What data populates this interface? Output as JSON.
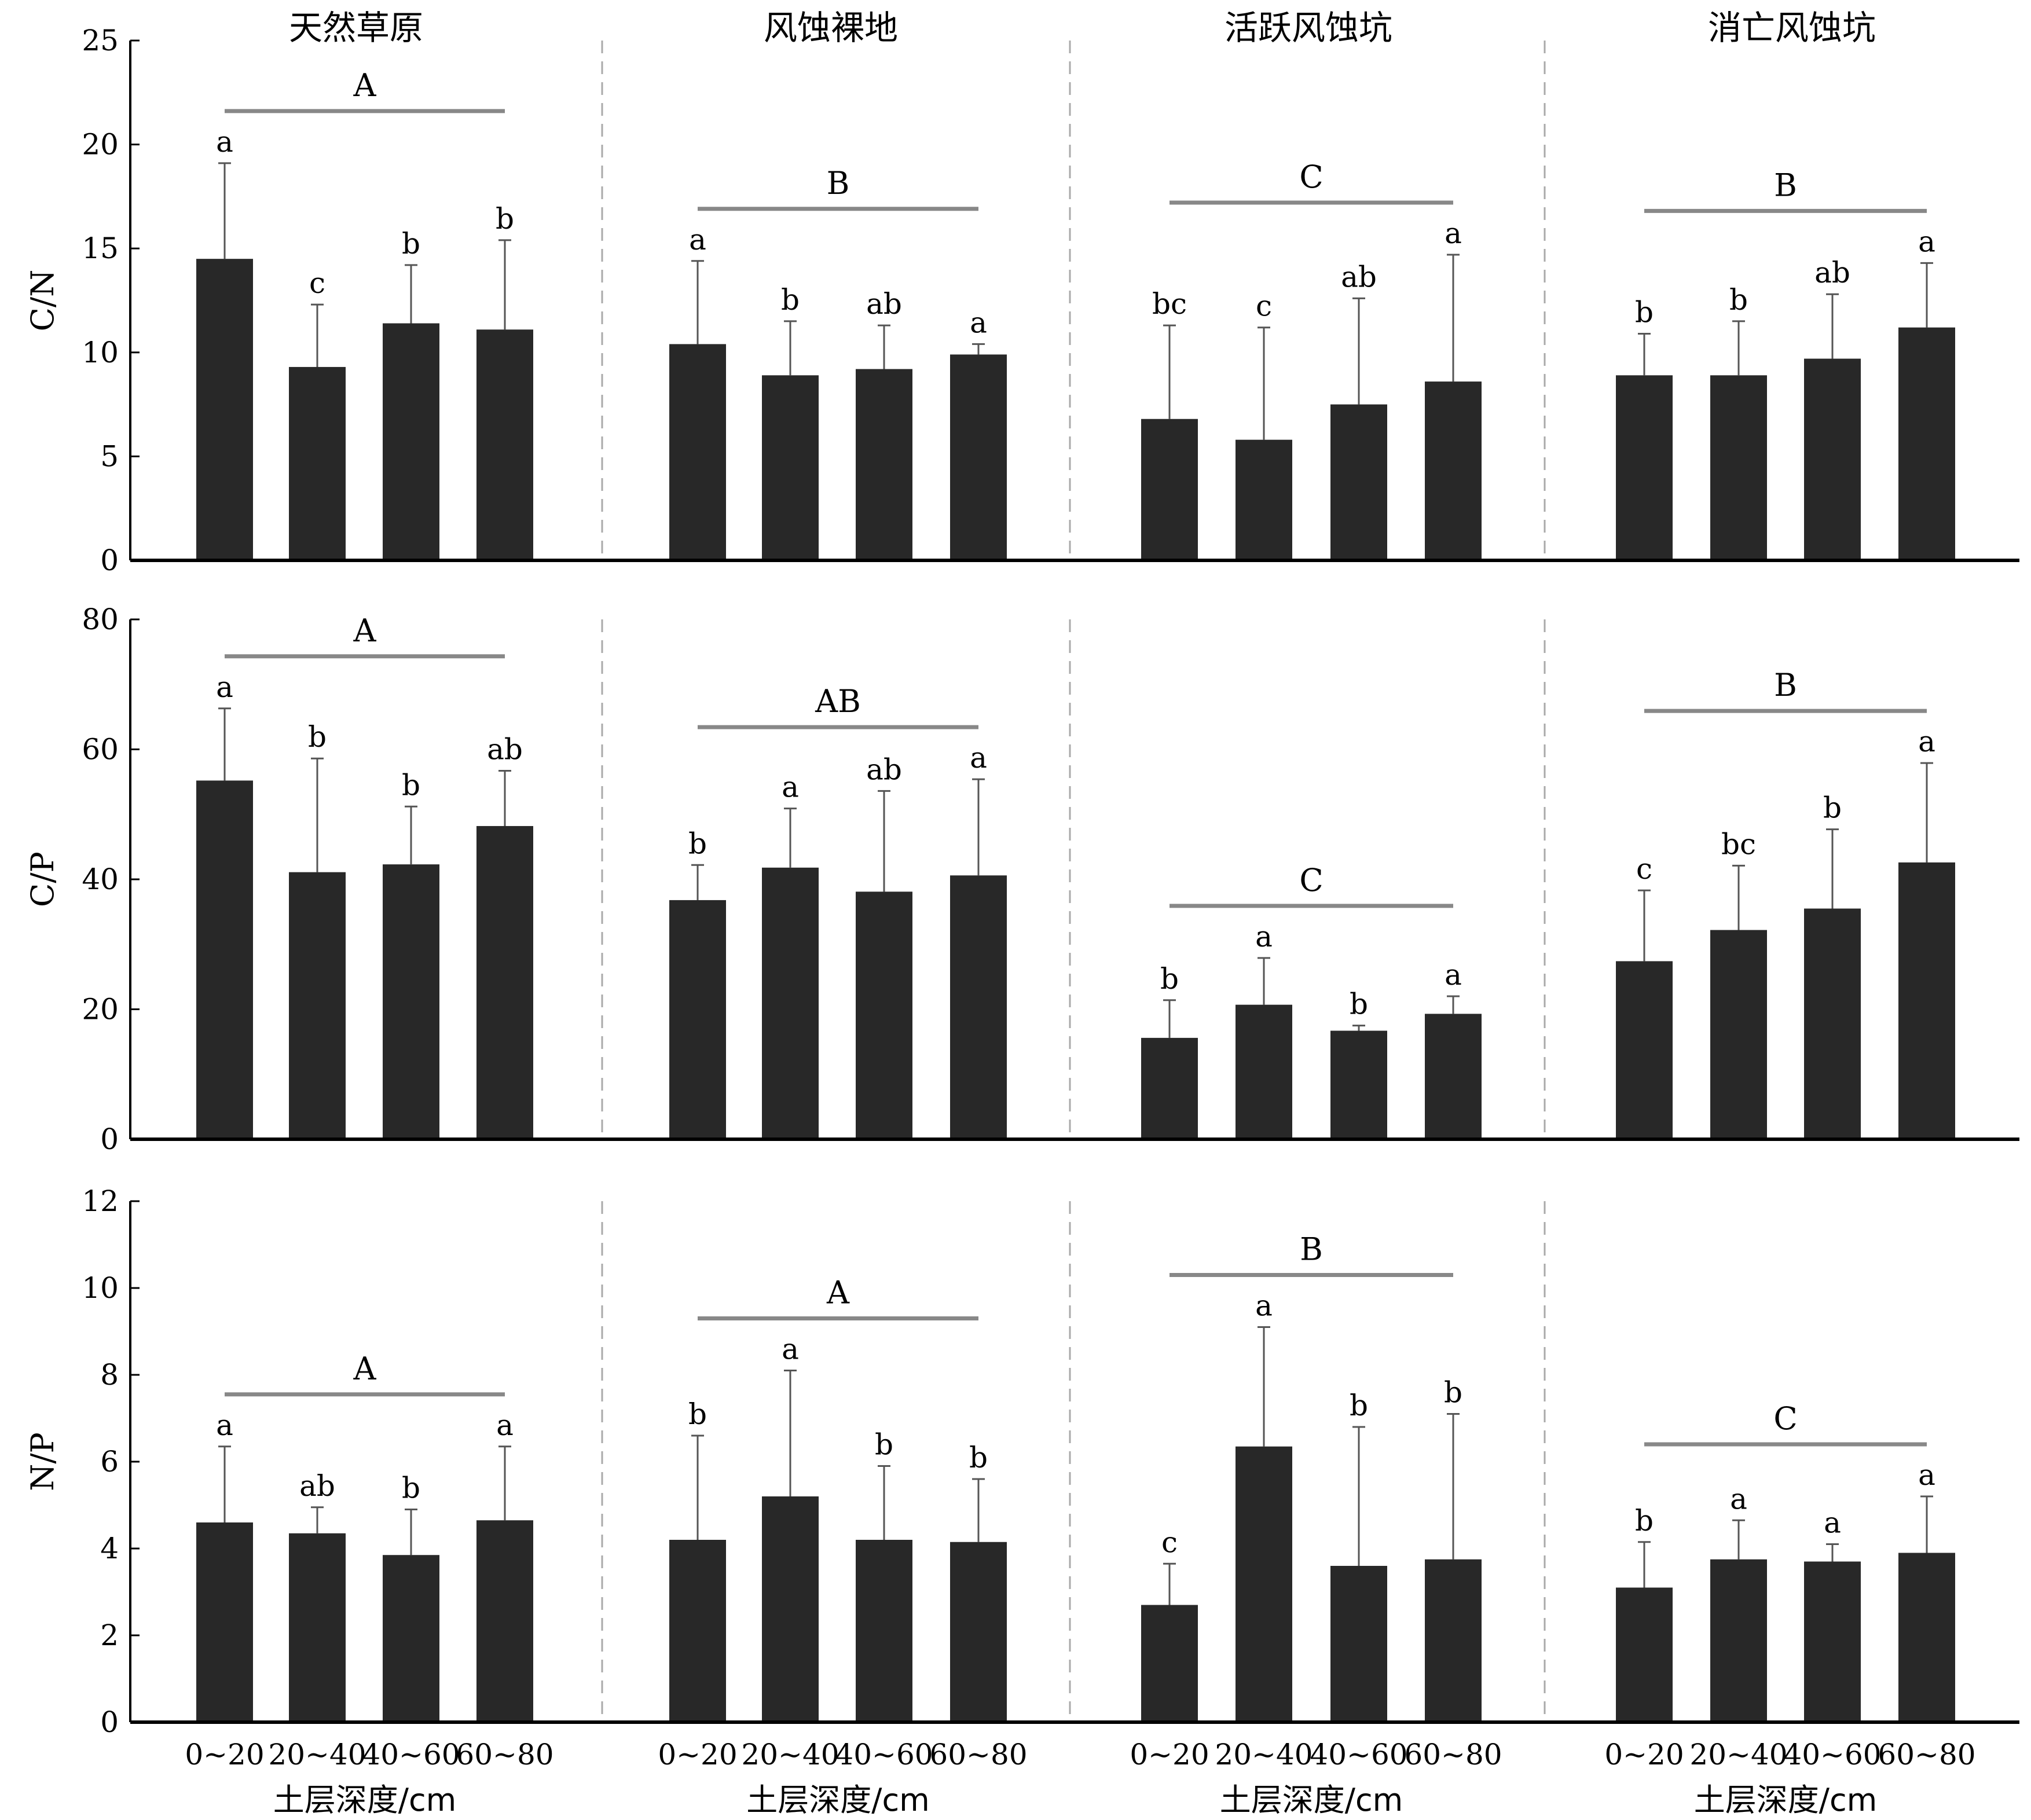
{
  "figure": {
    "site_labels": [
      "天然草原",
      "风蚀裸地",
      "活跃风蚀坑",
      "消亡风蚀坑"
    ],
    "x_tick_labels": [
      "0~20",
      "20~40",
      "40~60",
      "60~80"
    ],
    "x_axis_label": "土层深度/cm"
  },
  "colors": {
    "bar": "#282828",
    "error": "#555555",
    "group_line": "#888888",
    "divider": "#aaaaaa",
    "axis": "#000000"
  },
  "chart_data": [
    {
      "type": "bar",
      "ylabel": "C/N",
      "ylim": [
        0,
        25
      ],
      "yticks": [
        0,
        5,
        10,
        15,
        20,
        25
      ],
      "categories": [
        "0~20",
        "20~40",
        "40~60",
        "60~80"
      ],
      "groups": [
        {
          "site": "天然草原",
          "values": [
            14.5,
            9.3,
            11.4,
            11.1
          ],
          "error_top": [
            19.1,
            12.3,
            14.2,
            15.4
          ],
          "letters": [
            "a",
            "c",
            "b",
            "b"
          ],
          "group_letter": "A"
        },
        {
          "site": "风蚀裸地",
          "values": [
            10.4,
            8.9,
            9.2,
            9.9
          ],
          "error_top": [
            14.4,
            11.5,
            11.3,
            10.4
          ],
          "letters": [
            "a",
            "b",
            "ab",
            "a"
          ],
          "group_letter": "B"
        },
        {
          "site": "活跃风蚀坑",
          "values": [
            6.8,
            5.8,
            7.5,
            8.6
          ],
          "error_top": [
            11.3,
            11.2,
            12.6,
            14.7
          ],
          "letters": [
            "bc",
            "c",
            "ab",
            "a"
          ],
          "group_letter": "C"
        },
        {
          "site": "消亡风蚀坑",
          "values": [
            8.9,
            8.9,
            9.7,
            11.2
          ],
          "error_top": [
            10.9,
            11.5,
            12.8,
            14.3
          ],
          "letters": [
            "b",
            "b",
            "ab",
            "a"
          ],
          "group_letter": "B"
        }
      ]
    },
    {
      "type": "bar",
      "ylabel": "C/P",
      "ylim": [
        0,
        80
      ],
      "yticks": [
        0,
        20,
        40,
        60,
        80
      ],
      "categories": [
        "0~20",
        "20~40",
        "40~60",
        "60~80"
      ],
      "groups": [
        {
          "site": "天然草原",
          "values": [
            55.2,
            41.1,
            42.3,
            48.2
          ],
          "error_top": [
            66.3,
            58.6,
            51.2,
            56.7
          ],
          "letters": [
            "a",
            "b",
            "b",
            "ab"
          ],
          "group_letter": "A"
        },
        {
          "site": "风蚀裸地",
          "values": [
            36.8,
            41.8,
            38.1,
            40.6
          ],
          "error_top": [
            42.2,
            50.9,
            53.6,
            55.4
          ],
          "letters": [
            "b",
            "a",
            "ab",
            "a"
          ],
          "group_letter": "AB"
        },
        {
          "site": "活跃风蚀坑",
          "values": [
            15.6,
            20.7,
            16.7,
            19.3
          ],
          "error_top": [
            21.4,
            27.9,
            17.5,
            22.0
          ],
          "letters": [
            "b",
            "a",
            "b",
            "a"
          ],
          "group_letter": "C"
        },
        {
          "site": "消亡风蚀坑",
          "values": [
            27.4,
            32.2,
            35.5,
            42.6
          ],
          "error_top": [
            38.3,
            42.1,
            47.7,
            57.9
          ],
          "letters": [
            "c",
            "bc",
            "b",
            "a"
          ],
          "group_letter": "B"
        }
      ]
    },
    {
      "type": "bar",
      "ylabel": "N/P",
      "ylim": [
        0,
        12
      ],
      "yticks": [
        0,
        2,
        4,
        6,
        8,
        10,
        12
      ],
      "categories": [
        "0~20",
        "20~40",
        "40~60",
        "60~80"
      ],
      "groups": [
        {
          "site": "天然草原",
          "values": [
            4.6,
            4.35,
            3.85,
            4.65
          ],
          "error_top": [
            6.35,
            4.95,
            4.9,
            6.35
          ],
          "letters": [
            "a",
            "ab",
            "b",
            "a"
          ],
          "group_letter": "A"
        },
        {
          "site": "风蚀裸地",
          "values": [
            4.2,
            5.2,
            4.2,
            4.15
          ],
          "error_top": [
            6.6,
            8.1,
            5.9,
            5.6
          ],
          "letters": [
            "b",
            "a",
            "b",
            "b"
          ],
          "group_letter": "A"
        },
        {
          "site": "活跃风蚀坑",
          "values": [
            2.7,
            6.35,
            3.6,
            3.75
          ],
          "error_top": [
            3.65,
            9.1,
            6.8,
            7.1
          ],
          "letters": [
            "c",
            "a",
            "b",
            "b"
          ],
          "group_letter": "B"
        },
        {
          "site": "消亡风蚀坑",
          "values": [
            3.1,
            3.75,
            3.7,
            3.9
          ],
          "error_top": [
            4.15,
            4.65,
            4.1,
            5.2
          ],
          "letters": [
            "b",
            "a",
            "a",
            "a"
          ],
          "group_letter": "C"
        }
      ]
    }
  ]
}
